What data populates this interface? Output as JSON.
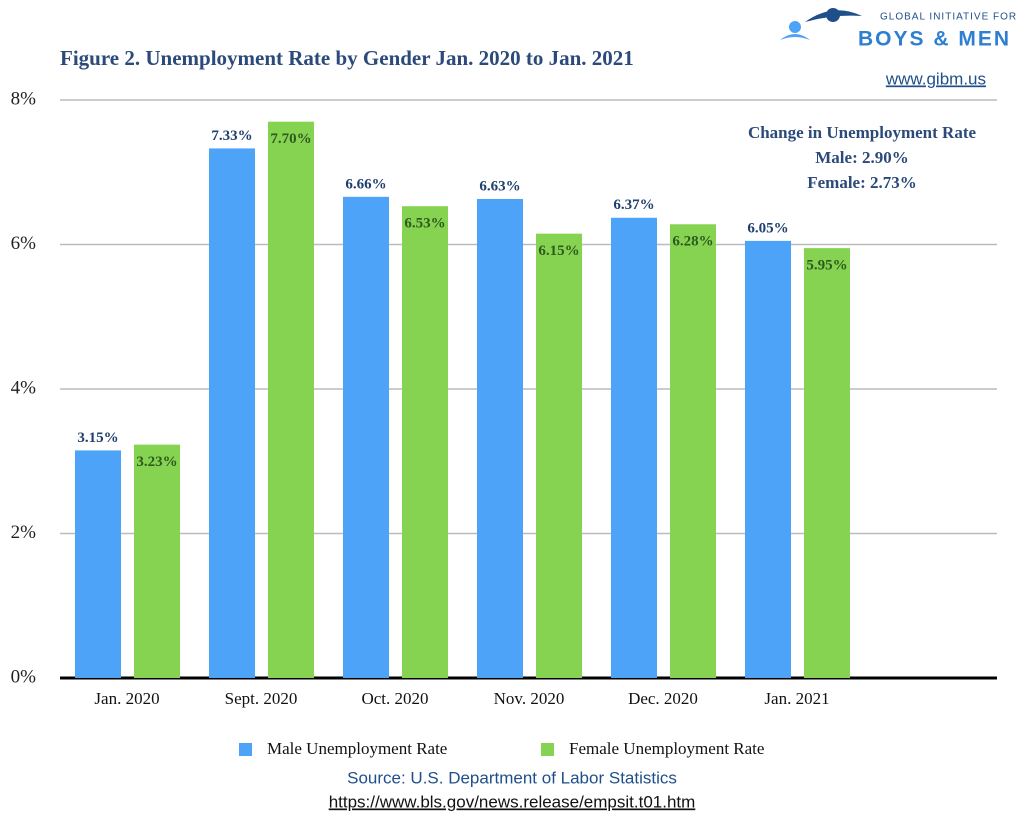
{
  "chart_data": {
    "type": "bar",
    "title": "Figure 2. Unemployment Rate by Gender Jan. 2020 to Jan. 2021",
    "categories": [
      "Jan. 2020",
      "Sept. 2020",
      "Oct. 2020",
      "Nov. 2020",
      "Dec. 2020",
      "Jan. 2021"
    ],
    "series": [
      {
        "name": "Male Unemployment Rate",
        "color": "#4da3f7",
        "label_color": "#1f3f6e",
        "values": [
          3.15,
          7.33,
          6.66,
          6.63,
          6.37,
          6.05
        ],
        "value_labels": [
          "3.15%",
          "7.33%",
          "6.66%",
          "6.63%",
          "6.37%",
          "6.05%"
        ]
      },
      {
        "name": "Female Unemployment Rate",
        "color": "#86d352",
        "label_color": "#2e5a1e",
        "values": [
          3.23,
          7.7,
          6.53,
          6.15,
          6.28,
          5.95
        ],
        "value_labels": [
          "3.23%",
          "7.70%",
          "6.53%",
          "6.15%",
          "6.28%",
          "5.95%"
        ]
      }
    ],
    "ylim": [
      0,
      8
    ],
    "yticks": [
      {
        "value": 0,
        "label": "0%"
      },
      {
        "value": 2,
        "label": "2%"
      },
      {
        "value": 4,
        "label": "4%"
      },
      {
        "value": 6,
        "label": "6%"
      },
      {
        "value": 8,
        "label": "8%"
      }
    ],
    "grid": true,
    "legend": "bottom",
    "annotations": [
      "Change in Unemployment Rate",
      "Male:  2.90%",
      "Female: 2.73%"
    ],
    "source": [
      "Source: U.S. Department of Labor Statistics",
      "https://www.bls.gov/news.release/empsit.t01.htm"
    ]
  },
  "logo": {
    "line1": "GLOBAL INITIATIVE FOR",
    "line2": "BOYS & MEN",
    "url": "www.gibm.us"
  }
}
